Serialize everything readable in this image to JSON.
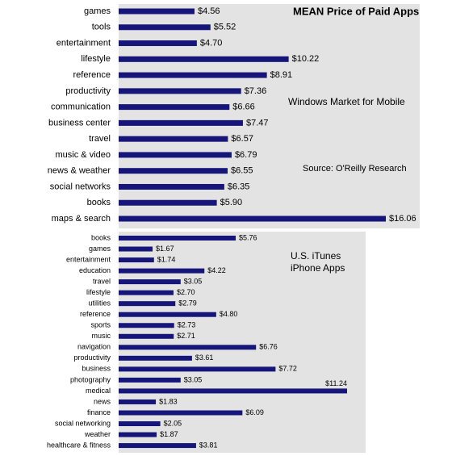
{
  "chart_data": [
    {
      "type": "bar",
      "orientation": "horizontal",
      "title": "MEAN Price of Paid Apps",
      "subtitle": "Windows Market for Mobile",
      "source": "Source: O'Reilly Research",
      "color": "#16167a",
      "categories": [
        "games",
        "tools",
        "entertainment",
        "lifestyle",
        "reference",
        "productivity",
        "communication",
        "business center",
        "travel",
        "music & video",
        "news & weather",
        "social networks",
        "books",
        "maps & search"
      ],
      "values": [
        4.56,
        5.52,
        4.7,
        10.22,
        8.91,
        7.36,
        6.66,
        7.47,
        6.57,
        6.79,
        6.55,
        6.35,
        5.9,
        16.06
      ],
      "value_labels": [
        "$4.56",
        "$5.52",
        "$4.70",
        "$10.22",
        "$8.91",
        "$7.36",
        "$6.66",
        "$7.47",
        "$6.57",
        "$6.79",
        "$6.55",
        "$6.35",
        "$5.90",
        "$16.06"
      ]
    },
    {
      "type": "bar",
      "orientation": "horizontal",
      "title_lines": [
        "U.S. iTunes",
        "iPhone Apps"
      ],
      "color": "#16167a",
      "categories": [
        "books",
        "games",
        "entertainment",
        "education",
        "travel",
        "lifestyle",
        "utilities",
        "reference",
        "sports",
        "music",
        "navigation",
        "productivity",
        "business",
        "photography",
        "medical",
        "news",
        "finance",
        "social networking",
        "weather",
        "healthcare & fitness"
      ],
      "values": [
        5.76,
        1.67,
        1.74,
        4.22,
        3.05,
        2.7,
        2.79,
        4.8,
        2.73,
        2.71,
        6.76,
        3.61,
        7.72,
        3.05,
        11.24,
        1.83,
        6.09,
        2.05,
        1.87,
        3.81
      ],
      "value_labels": [
        "$5.76",
        "$1.67",
        "$1.74",
        "$4.22",
        "$3.05",
        "$2.70",
        "$2.79",
        "$4.80",
        "$2.73",
        "$2.71",
        "$6.76",
        "$3.61",
        "$7.72",
        "$3.05",
        "$11.24",
        "$1.83",
        "$6.09",
        "$2.05",
        "$1.87",
        "$3.81"
      ]
    }
  ]
}
